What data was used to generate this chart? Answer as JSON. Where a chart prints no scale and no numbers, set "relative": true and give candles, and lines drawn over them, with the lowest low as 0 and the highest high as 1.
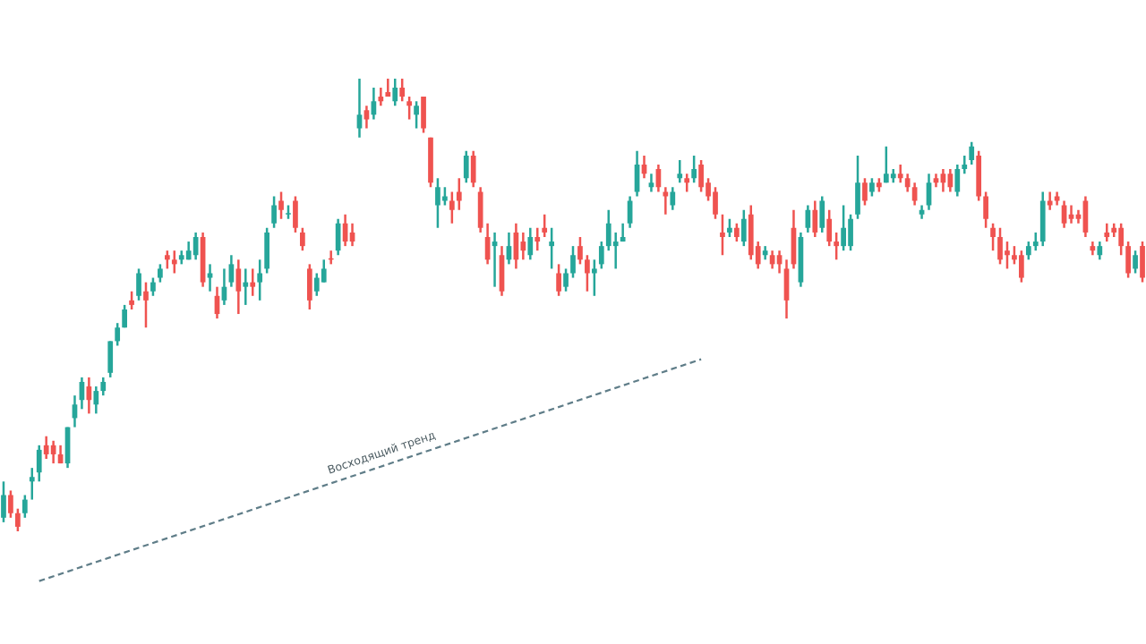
{
  "chart_data": {
    "type": "candlestick",
    "relative": true,
    "categories": [
      null,
      null,
      null,
      null,
      null,
      null,
      null,
      null,
      null,
      null,
      null,
      null,
      null,
      null,
      null,
      null,
      null,
      null,
      null,
      null,
      null,
      null,
      null,
      null,
      null,
      null,
      null,
      null,
      null,
      null,
      null,
      null,
      null,
      null,
      null,
      null,
      null,
      null,
      null,
      null,
      null,
      null,
      null,
      null,
      null,
      null,
      null,
      null,
      null,
      null,
      null,
      null,
      null,
      null,
      null,
      null,
      null,
      null,
      null,
      null,
      null,
      null,
      null,
      null,
      null,
      null,
      null,
      null,
      null,
      null,
      null,
      null,
      null,
      null,
      null,
      null,
      null,
      null,
      null,
      null,
      null,
      null,
      null,
      null,
      null,
      null,
      null,
      null,
      null,
      null,
      null,
      null,
      null,
      null,
      null,
      null,
      null,
      null,
      null,
      null,
      null,
      null,
      null,
      null,
      null,
      null,
      null,
      null,
      null,
      null,
      null,
      null,
      null,
      null,
      null,
      null,
      null,
      null,
      null,
      null,
      null,
      null,
      null,
      null,
      null,
      null,
      null,
      null,
      null,
      null,
      null,
      null,
      null,
      null,
      null,
      null,
      null,
      null,
      null,
      null,
      null,
      null,
      null,
      null,
      null,
      null,
      null,
      null,
      null,
      null,
      null,
      null,
      null,
      null,
      null,
      null,
      null,
      null,
      null,
      null,
      null
    ],
    "ohlc": [
      [
        0.03,
        0.11,
        0.02,
        0.08
      ],
      [
        0.08,
        0.09,
        0.03,
        0.04
      ],
      [
        0.04,
        0.05,
        0,
        0.01
      ],
      [
        0.04,
        0.08,
        0.03,
        0.07
      ],
      [
        0.11,
        0.14,
        0.07,
        0.12
      ],
      [
        0.13,
        0.19,
        0.11,
        0.18
      ],
      [
        0.19,
        0.21,
        0.16,
        0.17
      ],
      [
        0.19,
        0.2,
        0.15,
        0.17
      ],
      [
        0.17,
        0.19,
        0.15,
        0.15
      ],
      [
        0.15,
        0.23,
        0.14,
        0.23
      ],
      [
        0.25,
        0.3,
        0.23,
        0.28
      ],
      [
        0.29,
        0.34,
        0.27,
        0.33
      ],
      [
        0.32,
        0.34,
        0.26,
        0.29
      ],
      [
        0.28,
        0.32,
        0.26,
        0.31
      ],
      [
        0.31,
        0.34,
        0.3,
        0.33
      ],
      [
        0.35,
        0.42,
        0.34,
        0.42
      ],
      [
        0.42,
        0.46,
        0.41,
        0.45
      ],
      [
        0.45,
        0.5,
        0.45,
        0.49
      ],
      [
        0.51,
        0.53,
        0.49,
        0.5
      ],
      [
        0.52,
        0.58,
        0.51,
        0.57
      ],
      [
        0.53,
        0.55,
        0.45,
        0.51
      ],
      [
        0.53,
        0.56,
        0.52,
        0.55
      ],
      [
        0.56,
        0.59,
        0.55,
        0.58
      ],
      [
        0.61,
        0.62,
        0.58,
        0.6
      ],
      [
        0.6,
        0.62,
        0.57,
        0.59
      ],
      [
        0.6,
        0.62,
        0.59,
        0.61
      ],
      [
        0.6,
        0.64,
        0.6,
        0.62
      ],
      [
        0.61,
        0.66,
        0.6,
        0.65
      ],
      [
        0.65,
        0.66,
        0.54,
        0.55
      ],
      [
        0.56,
        0.59,
        0.53,
        0.57
      ],
      [
        0.52,
        0.54,
        0.47,
        0.48
      ],
      [
        0.51,
        0.58,
        0.5,
        0.54
      ],
      [
        0.55,
        0.61,
        0.54,
        0.59
      ],
      [
        0.58,
        0.6,
        0.48,
        0.53
      ],
      [
        0.54,
        0.58,
        0.5,
        0.55
      ],
      [
        0.55,
        0.58,
        0.52,
        0.54
      ],
      [
        0.55,
        0.6,
        0.51,
        0.57
      ],
      [
        0.58,
        0.67,
        0.57,
        0.66
      ],
      [
        0.68,
        0.74,
        0.67,
        0.72
      ],
      [
        0.73,
        0.75,
        0.69,
        0.71
      ],
      [
        0.7,
        0.72,
        0.69,
        0.7
      ],
      [
        0.73,
        0.74,
        0.66,
        0.67
      ],
      [
        0.66,
        0.67,
        0.62,
        0.63
      ],
      [
        0.58,
        0.59,
        0.49,
        0.51
      ],
      [
        0.53,
        0.57,
        0.52,
        0.56
      ],
      [
        0.55,
        0.6,
        0.55,
        0.58
      ],
      [
        0.6,
        0.62,
        0.59,
        0.6
      ],
      [
        0.62,
        0.69,
        0.61,
        0.68
      ],
      [
        0.68,
        0.7,
        0.63,
        0.64
      ],
      [
        0.66,
        0.68,
        0.63,
        0.64
      ],
      [
        0.89,
        1,
        0.87,
        0.92
      ],
      [
        0.93,
        0.94,
        0.89,
        0.91
      ],
      [
        0.92,
        0.98,
        0.91,
        0.95
      ],
      [
        0.96,
        0.98,
        0.94,
        0.95
      ],
      [
        0.97,
        1,
        0.96,
        0.96
      ],
      [
        0.95,
        1,
        0.94,
        0.98
      ],
      [
        0.98,
        1,
        0.95,
        0.96
      ],
      [
        0.95,
        0.96,
        0.91,
        0.94
      ],
      [
        0.92,
        0.95,
        0.89,
        0.94
      ],
      [
        0.96,
        0.96,
        0.88,
        0.89
      ],
      [
        0.87,
        0.87,
        0.76,
        0.77
      ],
      [
        0.72,
        0.78,
        0.67,
        0.76
      ],
      [
        0.73,
        0.76,
        0.72,
        0.74
      ],
      [
        0.73,
        0.75,
        0.68,
        0.71
      ],
      [
        0.75,
        0.78,
        0.71,
        0.73
      ],
      [
        0.78,
        0.84,
        0.77,
        0.83
      ],
      [
        0.83,
        0.84,
        0.76,
        0.77
      ],
      [
        0.75,
        0.76,
        0.66,
        0.67
      ],
      [
        0.65,
        0.68,
        0.59,
        0.6
      ],
      [
        0.63,
        0.66,
        0.54,
        0.64
      ],
      [
        0.61,
        0.63,
        0.52,
        0.53
      ],
      [
        0.6,
        0.66,
        0.59,
        0.63
      ],
      [
        0.66,
        0.68,
        0.58,
        0.6
      ],
      [
        0.64,
        0.66,
        0.6,
        0.62
      ],
      [
        0.61,
        0.67,
        0.6,
        0.65
      ],
      [
        0.65,
        0.67,
        0.62,
        0.64
      ],
      [
        0.67,
        0.7,
        0.65,
        0.66
      ],
      [
        0.63,
        0.67,
        0.58,
        0.64
      ],
      [
        0.57,
        0.59,
        0.52,
        0.53
      ],
      [
        0.54,
        0.58,
        0.53,
        0.57
      ],
      [
        0.57,
        0.63,
        0.56,
        0.61
      ],
      [
        0.63,
        0.65,
        0.59,
        0.6
      ],
      [
        0.6,
        0.61,
        0.53,
        0.57
      ],
      [
        0.57,
        0.6,
        0.52,
        0.58
      ],
      [
        0.59,
        0.64,
        0.58,
        0.63
      ],
      [
        0.63,
        0.71,
        0.62,
        0.68
      ],
      [
        0.63,
        0.66,
        0.58,
        0.64
      ],
      [
        0.64,
        0.68,
        0.64,
        0.65
      ],
      [
        0.68,
        0.74,
        0.67,
        0.73
      ],
      [
        0.75,
        0.84,
        0.74,
        0.81
      ],
      [
        0.81,
        0.83,
        0.78,
        0.79
      ],
      [
        0.76,
        0.79,
        0.75,
        0.77
      ],
      [
        0.8,
        0.81,
        0.75,
        0.76
      ],
      [
        0.75,
        0.76,
        0.7,
        0.74
      ],
      [
        0.72,
        0.76,
        0.71,
        0.75
      ],
      [
        0.78,
        0.82,
        0.77,
        0.79
      ],
      [
        0.78,
        0.79,
        0.75,
        0.77
      ],
      [
        0.78,
        0.83,
        0.77,
        0.8
      ],
      [
        0.81,
        0.82,
        0.75,
        0.76
      ],
      [
        0.77,
        0.78,
        0.73,
        0.74
      ],
      [
        0.75,
        0.76,
        0.69,
        0.7
      ],
      [
        0.66,
        0.7,
        0.61,
        0.65
      ],
      [
        0.66,
        0.69,
        0.65,
        0.67
      ],
      [
        0.67,
        0.68,
        0.64,
        0.65
      ],
      [
        0.64,
        0.71,
        0.63,
        0.69
      ],
      [
        0.7,
        0.72,
        0.6,
        0.61
      ],
      [
        0.63,
        0.64,
        0.58,
        0.59
      ],
      [
        0.61,
        0.63,
        0.6,
        0.62
      ],
      [
        0.61,
        0.62,
        0.58,
        0.59
      ],
      [
        0.61,
        0.62,
        0.57,
        0.59
      ],
      [
        0.58,
        0.6,
        0.47,
        0.51
      ],
      [
        0.67,
        0.71,
        0.58,
        0.59
      ],
      [
        0.55,
        0.66,
        0.54,
        0.65
      ],
      [
        0.67,
        0.72,
        0.66,
        0.71
      ],
      [
        0.71,
        0.73,
        0.65,
        0.66
      ],
      [
        0.67,
        0.74,
        0.66,
        0.73
      ],
      [
        0.69,
        0.71,
        0.63,
        0.64
      ],
      [
        0.64,
        0.66,
        0.6,
        0.63
      ],
      [
        0.63,
        0.72,
        0.62,
        0.67
      ],
      [
        0.63,
        0.7,
        0.62,
        0.69
      ],
      [
        0.7,
        0.83,
        0.69,
        0.77
      ],
      [
        0.77,
        0.78,
        0.72,
        0.73
      ],
      [
        0.75,
        0.78,
        0.74,
        0.77
      ],
      [
        0.77,
        0.78,
        0.75,
        0.76
      ],
      [
        0.77,
        0.85,
        0.77,
        0.79
      ],
      [
        0.78,
        0.8,
        0.77,
        0.79
      ],
      [
        0.79,
        0.81,
        0.77,
        0.78
      ],
      [
        0.78,
        0.79,
        0.75,
        0.76
      ],
      [
        0.76,
        0.77,
        0.72,
        0.73
      ],
      [
        0.7,
        0.72,
        0.69,
        0.71
      ],
      [
        0.72,
        0.79,
        0.71,
        0.77
      ],
      [
        0.78,
        0.79,
        0.76,
        0.77
      ],
      [
        0.79,
        0.8,
        0.75,
        0.77
      ],
      [
        0.79,
        0.8,
        0.75,
        0.76
      ],
      [
        0.75,
        0.81,
        0.74,
        0.8
      ],
      [
        0.8,
        0.83,
        0.79,
        0.81
      ],
      [
        0.82,
        0.86,
        0.81,
        0.85
      ],
      [
        0.83,
        0.84,
        0.73,
        0.74
      ],
      [
        0.74,
        0.75,
        0.67,
        0.69
      ],
      [
        0.67,
        0.68,
        0.62,
        0.65
      ],
      [
        0.65,
        0.67,
        0.59,
        0.6
      ],
      [
        0.62,
        0.64,
        0.58,
        0.61
      ],
      [
        0.61,
        0.63,
        0.59,
        0.6
      ],
      [
        0.61,
        0.62,
        0.55,
        0.56
      ],
      [
        0.61,
        0.64,
        0.6,
        0.63
      ],
      [
        0.63,
        0.66,
        0.62,
        0.64
      ],
      [
        0.64,
        0.75,
        0.63,
        0.73
      ],
      [
        0.73,
        0.75,
        0.71,
        0.72
      ],
      [
        0.74,
        0.75,
        0.72,
        0.73
      ],
      [
        0.72,
        0.73,
        0.67,
        0.68
      ],
      [
        0.7,
        0.72,
        0.68,
        0.69
      ],
      [
        0.7,
        0.71,
        0.68,
        0.69
      ],
      [
        0.73,
        0.74,
        0.65,
        0.66
      ],
      [
        0.63,
        0.64,
        0.61,
        0.62
      ],
      [
        0.61,
        0.64,
        0.6,
        0.63
      ],
      [
        0.66,
        0.68,
        0.64,
        0.65
      ],
      [
        0.67,
        0.68,
        0.65,
        0.66
      ],
      [
        0.67,
        0.68,
        0.61,
        0.63
      ],
      [
        0.63,
        0.64,
        0.56,
        0.57
      ],
      [
        0.58,
        0.62,
        0.57,
        0.61
      ],
      [
        0.63,
        0.64,
        0.55,
        0.56
      ]
    ],
    "colors": [
      "#26a69a",
      "#ef5350",
      "#ef5350",
      "#26a69a",
      "#26a69a",
      "#26a69a",
      "#ef5350",
      "#ef5350",
      "#ef5350",
      "#26a69a",
      "#26a69a",
      "#26a69a",
      "#ef5350",
      "#26a69a",
      "#26a69a",
      "#26a69a",
      "#26a69a",
      "#26a69a",
      "#ef5350",
      "#26a69a",
      "#ef5350",
      "#26a69a",
      "#26a69a",
      "#ef5350",
      "#ef5350",
      "#26a69a",
      "#26a69a",
      "#26a69a",
      "#ef5350",
      "#26a69a",
      "#ef5350",
      "#26a69a",
      "#26a69a",
      "#ef5350",
      "#26a69a",
      "#ef5350",
      "#26a69a",
      "#26a69a",
      "#26a69a",
      "#ef5350",
      "#26a69a",
      "#ef5350",
      "#ef5350",
      "#ef5350",
      "#26a69a",
      "#26a69a",
      "#ef5350",
      "#26a69a",
      "#ef5350",
      "#ef5350",
      "#26a69a",
      "#ef5350",
      "#26a69a",
      "#ef5350",
      "#ef5350",
      "#26a69a",
      "#ef5350",
      "#ef5350",
      "#26a69a",
      "#ef5350",
      "#ef5350",
      "#26a69a",
      "#26a69a",
      "#ef5350",
      "#ef5350",
      "#26a69a",
      "#ef5350",
      "#ef5350",
      "#ef5350",
      "#26a69a",
      "#ef5350",
      "#26a69a",
      "#ef5350",
      "#ef5350",
      "#26a69a",
      "#ef5350",
      "#ef5350",
      "#26a69a",
      "#ef5350",
      "#26a69a",
      "#26a69a",
      "#ef5350",
      "#ef5350",
      "#26a69a",
      "#26a69a",
      "#26a69a",
      "#26a69a",
      "#26a69a",
      "#26a69a",
      "#26a69a",
      "#ef5350",
      "#26a69a",
      "#ef5350",
      "#ef5350",
      "#26a69a",
      "#26a69a",
      "#ef5350",
      "#26a69a",
      "#ef5350",
      "#ef5350",
      "#ef5350",
      "#ef5350",
      "#26a69a",
      "#ef5350",
      "#26a69a",
      "#ef5350",
      "#ef5350",
      "#26a69a",
      "#ef5350",
      "#ef5350",
      "#ef5350",
      "#ef5350",
      "#26a69a",
      "#26a69a",
      "#ef5350",
      "#26a69a",
      "#ef5350",
      "#ef5350",
      "#26a69a",
      "#26a69a",
      "#26a69a",
      "#ef5350",
      "#26a69a",
      "#ef5350",
      "#26a69a",
      "#26a69a",
      "#ef5350",
      "#ef5350",
      "#ef5350",
      "#26a69a",
      "#26a69a",
      "#ef5350",
      "#ef5350",
      "#ef5350",
      "#26a69a",
      "#26a69a",
      "#26a69a",
      "#ef5350",
      "#ef5350",
      "#ef5350",
      "#ef5350",
      "#ef5350",
      "#ef5350",
      "#ef5350",
      "#26a69a",
      "#26a69a",
      "#26a69a",
      "#ef5350",
      "#ef5350",
      "#ef5350",
      "#ef5350",
      "#ef5350",
      "#ef5350",
      "#ef5350",
      "#26a69a",
      "#ef5350",
      "#ef5350",
      "#ef5350",
      "#ef5350",
      "#26a69a",
      "#ef5350"
    ],
    "series": [
      {
        "type": "line",
        "color": "#5f7d88",
        "line_style": "dashed",
        "values": [
          null,
          null,
          null,
          null,
          null,
          -0.11,
          null,
          null,
          null,
          null,
          null,
          null,
          null,
          null,
          null,
          null,
          null,
          null,
          null,
          null,
          null,
          null,
          null,
          null,
          null,
          null,
          null,
          null,
          null,
          null,
          null,
          null,
          null,
          null,
          null,
          null,
          null,
          null,
          null,
          null,
          null,
          null,
          null,
          null,
          null,
          null,
          null,
          null,
          null,
          null,
          null,
          null,
          null,
          null,
          null,
          null,
          null,
          null,
          null,
          null,
          null,
          null,
          null,
          null,
          null,
          null,
          null,
          null,
          null,
          null,
          null,
          null,
          null,
          null,
          null,
          null,
          null,
          null,
          null,
          null,
          null,
          null,
          null,
          null,
          null,
          null,
          null,
          null,
          null,
          null,
          null,
          null,
          null,
          null,
          null,
          null,
          null,
          null,
          0.38,
          null,
          null,
          null,
          null,
          null,
          null,
          null,
          null,
          null,
          null,
          null,
          null,
          null,
          null,
          null,
          null,
          null,
          null,
          null,
          null,
          null,
          null,
          null,
          null,
          null,
          null,
          null,
          null,
          null,
          null,
          null,
          null,
          null,
          null,
          null,
          null,
          null,
          null,
          null,
          null,
          null,
          null,
          null,
          null,
          null,
          null,
          null,
          null,
          null,
          null,
          null,
          null,
          null,
          null,
          null,
          null,
          null,
          null,
          null,
          null,
          null,
          null
        ]
      }
    ],
    "annotations": [
      "Восходящий тренд"
    ]
  }
}
